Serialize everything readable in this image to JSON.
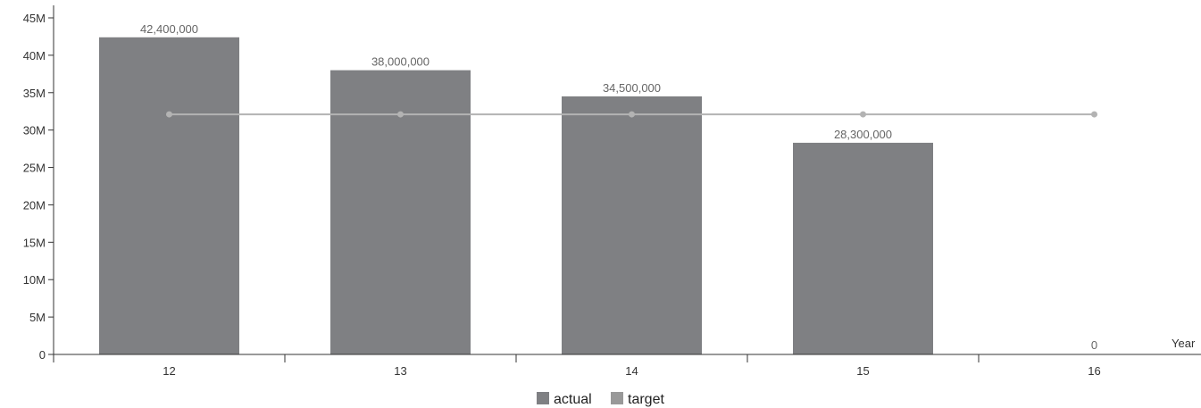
{
  "chart_data": {
    "type": "bar",
    "title": "",
    "xlabel": "Year",
    "ylabel": "",
    "categories": [
      "12",
      "13",
      "14",
      "15",
      "16"
    ],
    "series": [
      {
        "name": "actual",
        "type": "bar",
        "color": "#7f8083",
        "values": [
          42400000,
          38000000,
          34500000,
          28300000,
          0
        ],
        "data_labels": [
          "42,400,000",
          "38,000,000",
          "34,500,000",
          "28,300,000",
          "0"
        ]
      },
      {
        "name": "target",
        "type": "line",
        "color": "#b3b3b3",
        "values": [
          32100000,
          32100000,
          32100000,
          32100000,
          32100000
        ]
      }
    ],
    "ylim": [
      0,
      45000000
    ],
    "y_ticks": [
      0,
      5000000,
      10000000,
      15000000,
      20000000,
      25000000,
      30000000,
      35000000,
      40000000,
      45000000
    ],
    "y_tick_labels": [
      "0",
      "5M",
      "10M",
      "15M",
      "20M",
      "25M",
      "30M",
      "35M",
      "40M",
      "45M"
    ],
    "grid": false,
    "legend_position": "bottom-center",
    "axis_color": "#333333"
  }
}
